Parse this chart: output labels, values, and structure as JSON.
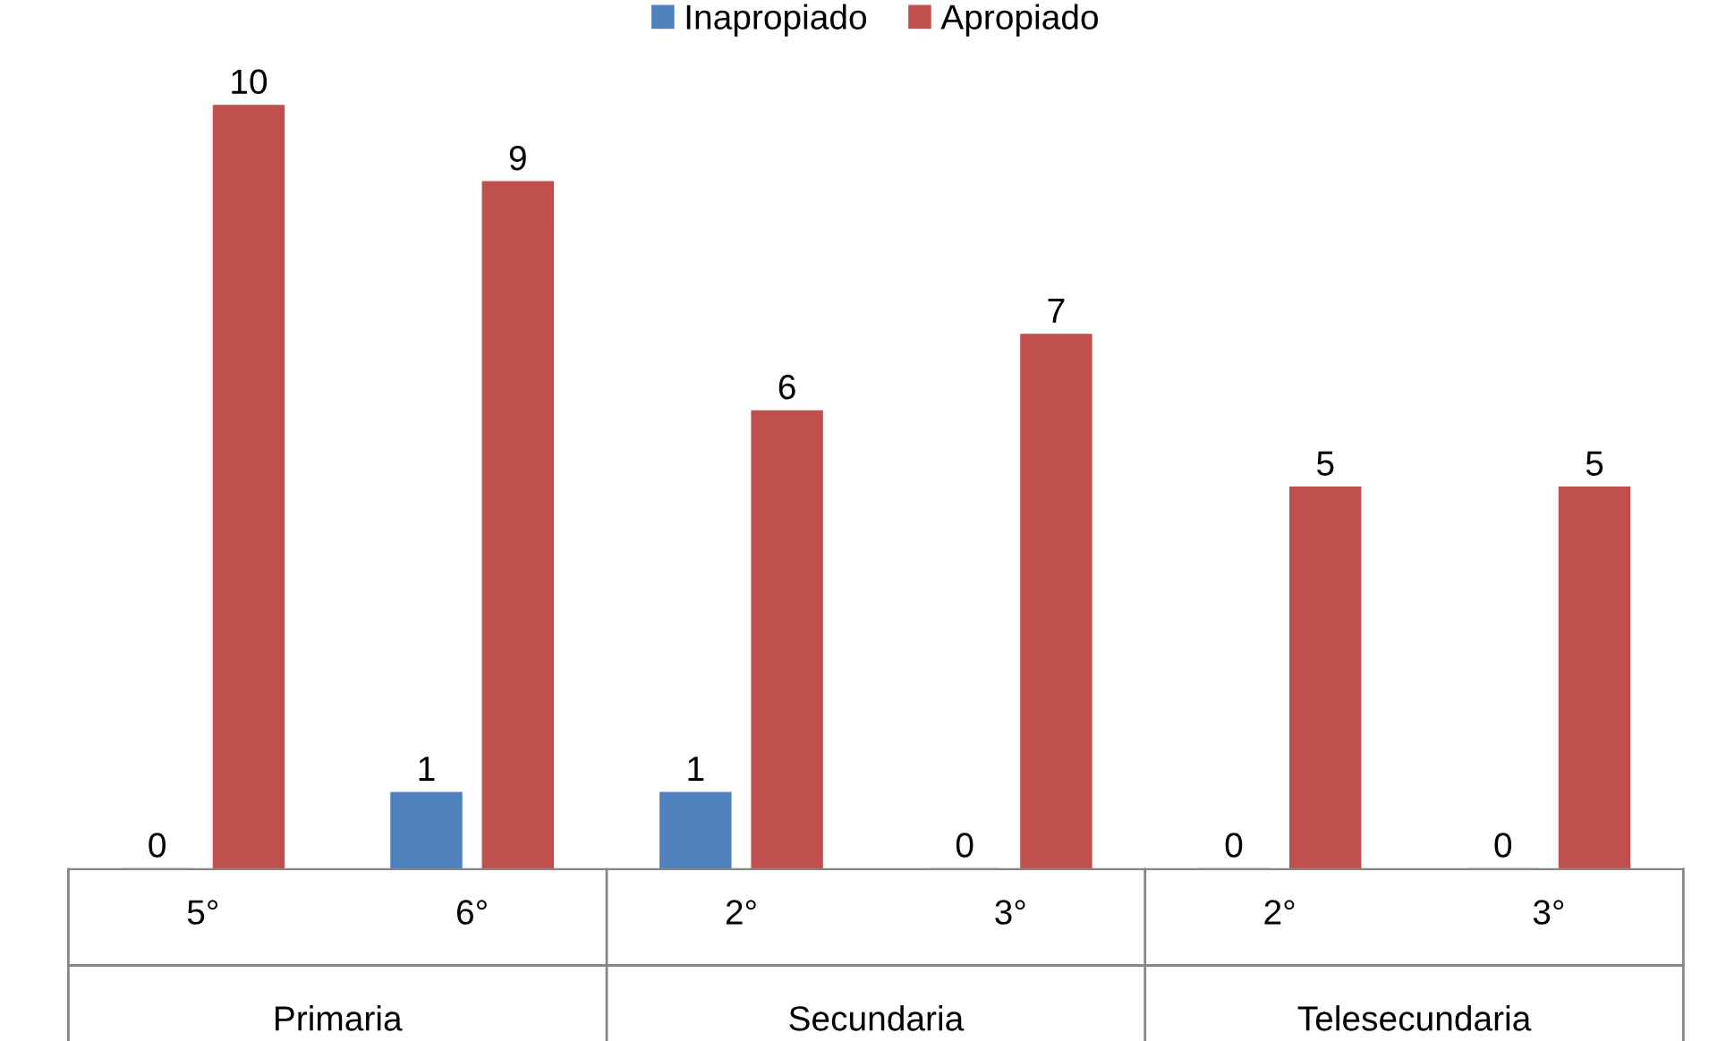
{
  "chart_data": {
    "type": "bar",
    "categories": [
      "5°",
      "6°",
      "2°",
      "3°",
      "2°",
      "3°"
    ],
    "series": [
      {
        "name": "Inapropiado",
        "color": "#4f81bd",
        "values": [
          0,
          1,
          1,
          0,
          0,
          0
        ]
      },
      {
        "name": "Apropiado",
        "color": "#c0504d",
        "values": [
          10,
          9,
          6,
          7,
          5,
          5
        ]
      }
    ],
    "annotations": [
      "Primaria",
      "Secundaria",
      "Telesecundaria"
    ],
    "data_labels": true,
    "legend": "top",
    "grid": false
  }
}
